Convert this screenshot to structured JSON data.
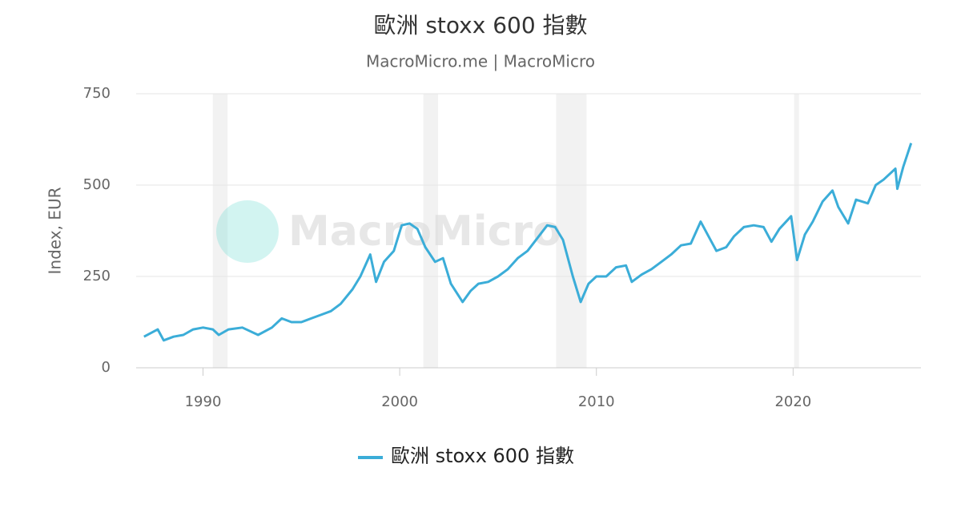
{
  "chart_data": {
    "type": "line",
    "title": "歐洲 stoxx 600 指數",
    "subtitle": "MacroMicro.me | MacroMicro",
    "watermark": "MacroMicro",
    "y_label": "Index, EUR",
    "xlim": [
      1986.6,
      2026.5
    ],
    "xticks": [
      1990,
      2000,
      2010,
      2020
    ],
    "ylim": [
      0,
      750
    ],
    "yticks": [
      0,
      250,
      500,
      750
    ],
    "grid": true,
    "legend": "bottom",
    "recessions": [
      [
        1990.5,
        1991.25
      ],
      [
        2001.2,
        2001.95
      ],
      [
        2007.95,
        2009.5
      ],
      [
        2020.05,
        2020.3
      ]
    ],
    "x": [
      1987.0,
      1987.7,
      1988.0,
      1988.5,
      1989.0,
      1989.5,
      1990.0,
      1990.5,
      1990.8,
      1991.3,
      1992.0,
      1992.8,
      1993.5,
      1994.0,
      1994.5,
      1995.0,
      1995.5,
      1996.0,
      1996.5,
      1997.0,
      1997.6,
      1998.0,
      1998.5,
      1998.8,
      1999.2,
      1999.7,
      2000.1,
      2000.5,
      2000.9,
      2001.3,
      2001.8,
      2002.2,
      2002.6,
      2003.2,
      2003.6,
      2004.0,
      2004.5,
      2005.0,
      2005.5,
      2006.0,
      2006.5,
      2007.0,
      2007.5,
      2007.9,
      2008.3,
      2008.8,
      2009.2,
      2009.6,
      2010.0,
      2010.5,
      2011.0,
      2011.5,
      2011.8,
      2012.3,
      2012.8,
      2013.3,
      2013.8,
      2014.3,
      2014.8,
      2015.3,
      2015.7,
      2016.1,
      2016.6,
      2017.0,
      2017.5,
      2018.0,
      2018.5,
      2018.9,
      2019.3,
      2019.9,
      2020.2,
      2020.6,
      2021.0,
      2021.5,
      2022.0,
      2022.3,
      2022.8,
      2023.2,
      2023.8,
      2024.2,
      2024.6,
      2025.2,
      2025.3,
      2025.6,
      2026.0
    ],
    "series": [
      {
        "name": "歐洲 stoxx 600 指數",
        "color": "#3badd8",
        "values": [
          85,
          105,
          75,
          85,
          90,
          105,
          110,
          105,
          90,
          105,
          110,
          90,
          110,
          135,
          125,
          125,
          135,
          145,
          155,
          175,
          215,
          250,
          310,
          235,
          290,
          320,
          390,
          395,
          380,
          330,
          290,
          300,
          230,
          180,
          210,
          230,
          235,
          250,
          270,
          300,
          320,
          355,
          390,
          385,
          350,
          250,
          180,
          230,
          250,
          250,
          275,
          280,
          235,
          255,
          270,
          290,
          310,
          335,
          340,
          400,
          360,
          320,
          330,
          360,
          385,
          390,
          385,
          345,
          380,
          415,
          295,
          365,
          400,
          455,
          485,
          440,
          395,
          460,
          450,
          500,
          515,
          545,
          490,
          550,
          615
        ]
      }
    ]
  }
}
